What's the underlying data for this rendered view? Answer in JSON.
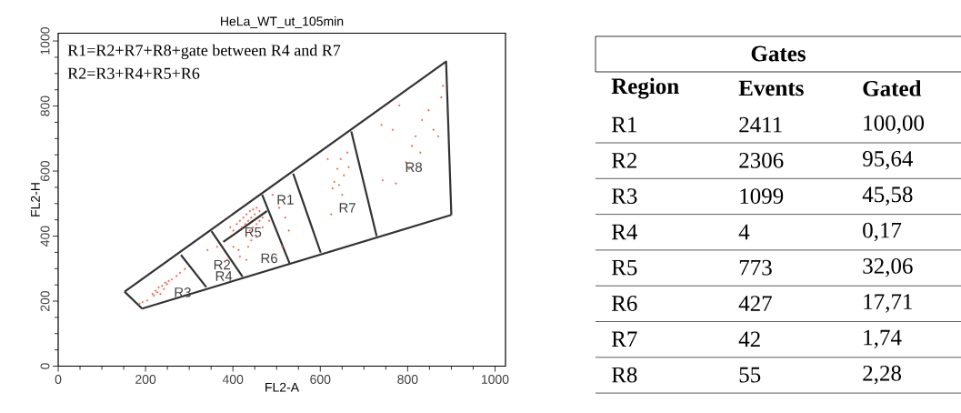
{
  "chart_data": [
    {
      "type": "scatter",
      "title": "HeLa_WT_ut_105min",
      "xlabel": "FL2-A",
      "ylabel": "FL2-H",
      "xlim": [
        0,
        1024
      ],
      "ylim": [
        0,
        1024
      ],
      "xticks": [
        0,
        {
          "value": 50,
          "label": null
        },
        {
          "value": 100,
          "label": null
        },
        {
          "value": 150,
          "label": null
        },
        200,
        {
          "value": 250,
          "label": null
        },
        {
          "value": 300,
          "label": null
        },
        {
          "value": 350,
          "label": null
        },
        400,
        {
          "value": 450,
          "label": null
        },
        {
          "value": 500,
          "label": null
        },
        {
          "value": 550,
          "label": null
        },
        600,
        {
          "value": 650,
          "label": null
        },
        {
          "value": 700,
          "label": null
        },
        {
          "value": 750,
          "label": null
        },
        800,
        {
          "value": 850,
          "label": null
        },
        {
          "value": 900,
          "label": null
        },
        {
          "value": 950,
          "label": null
        },
        1000
      ],
      "yticks": [
        0,
        {
          "value": 50,
          "label": null
        },
        {
          "value": 100,
          "label": null
        },
        {
          "value": 150,
          "label": null
        },
        200,
        {
          "value": 250,
          "label": null
        },
        {
          "value": 300,
          "label": null
        },
        {
          "value": 350,
          "label": null
        },
        400,
        {
          "value": 450,
          "label": null
        },
        {
          "value": 500,
          "label": null
        },
        {
          "value": 550,
          "label": null
        },
        600,
        {
          "value": 650,
          "label": null
        },
        {
          "value": 700,
          "label": null
        },
        {
          "value": 750,
          "label": null
        },
        800,
        {
          "value": 850,
          "label": null
        },
        {
          "value": 900,
          "label": null
        },
        {
          "value": 950,
          "label": null
        },
        1000
      ],
      "series": [
        {
          "type": "scatter",
          "marker": "circle",
          "color": "#f0624d",
          "x": [
            216,
            223,
            230,
            238,
            245,
            253,
            227,
            219,
            234,
            242,
            249,
            260,
            271,
            279,
            290,
            193,
            204,
            186,
            409,
            416,
            424,
            431,
            439,
            446,
            454,
            420,
            428,
            435,
            442,
            450,
            431,
            439,
            446,
            454,
            461,
            442,
            454,
            401,
            394,
            461,
            468,
            468,
            435,
            401,
            416,
            431,
            342,
            364,
            387,
            413,
            491,
            506,
            520,
            528,
            483,
            513,
            647,
            639,
            654,
            632,
            643,
            662,
            628,
            625,
            650,
            617,
            665,
            796,
            818,
            833,
            848,
            766,
            743,
            773,
            810,
            829,
            870,
            877,
            881,
            781,
            740,
            803,
            859
          ],
          "values": [
            222,
            232,
            242,
            247,
            257,
            262,
            227,
            217,
            222,
            237,
            252,
            267,
            277,
            287,
            299,
            197,
            202,
            192,
            437,
            447,
            457,
            467,
            477,
            482,
            487,
            427,
            437,
            447,
            457,
            467,
            407,
            417,
            427,
            437,
            447,
            387,
            397,
            417,
            427,
            477,
            457,
            427,
            367,
            367,
            337,
            327,
            357,
            367,
            327,
            357,
            527,
            487,
            457,
            417,
            447,
            367,
            637,
            607,
            587,
            567,
            557,
            657,
            547,
            467,
            527,
            637,
            612,
            627,
            707,
            757,
            787,
            727,
            572,
            562,
            677,
            657,
            707,
            827,
            862,
            802,
            742,
            607,
            727
          ]
        },
        {
          "type": "line",
          "marker": "none",
          "color": "#333333",
          "x": [
            152,
            888,
            900,
            null,
            192,
            900,
            null,
            152,
            192,
            null,
            281,
            339,
            null,
            351,
            422,
            null,
            467,
            530,
            null,
            538,
            601,
            null,
            671,
            729,
            null,
            378,
            478
          ],
          "values": [
            229,
            937,
            465,
            null,
            177,
            465,
            null,
            229,
            177,
            null,
            342,
            243,
            null,
            415,
            275,
            null,
            527,
            315,
            null,
            592,
            349,
            null,
            722,
            400,
            null,
            382,
            477
          ]
        }
      ],
      "annotations": [
        "R1=R2+R7+R8+gate between R4 and R7",
        "R2=R3+R4+R5+R6",
        "R1",
        "R2",
        "R3",
        "R4",
        "R5",
        "R6",
        "R7",
        "R8"
      ]
    },
    {
      "type": "other",
      "title": "Gates",
      "xlabel": "Region",
      "categories": [
        "R1",
        "R2",
        "R3",
        "R4",
        "R5",
        "R6",
        "R7",
        "R8"
      ],
      "series": [
        {
          "name": "Events",
          "values": [
            2411,
            2306,
            1099,
            4,
            773,
            427,
            42,
            55
          ],
          "value_labels": [
            "2411",
            "2306",
            "1099",
            "4",
            "773",
            "427",
            "42",
            "55"
          ]
        },
        {
          "name": "Gated",
          "values": [
            100.0,
            95.64,
            45.58,
            0.17,
            32.06,
            17.71,
            1.74,
            2.28
          ],
          "value_labels": [
            "100,00",
            "95,64",
            "45,58",
            "0,17",
            "32,06",
            "17,71",
            "1,74",
            "2,28"
          ]
        }
      ]
    }
  ]
}
